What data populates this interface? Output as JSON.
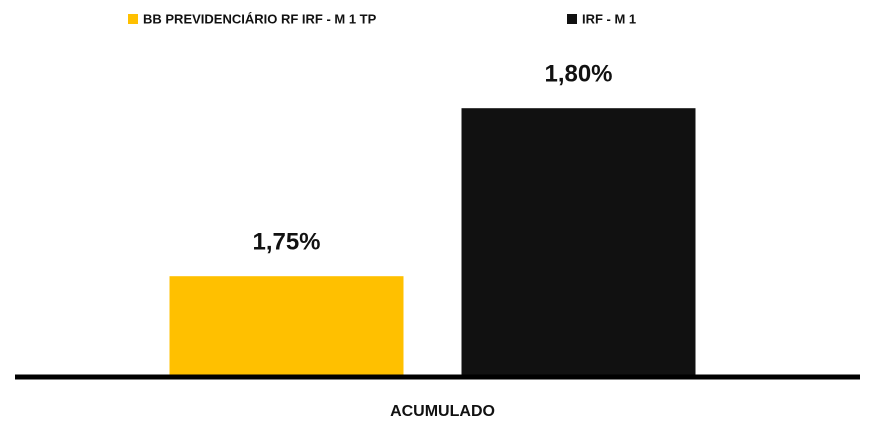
{
  "chart_data": {
    "type": "bar",
    "categories": [
      "ACUMULADO"
    ],
    "series": [
      {
        "name": "BB PREVIDENCIÁRIO RF IRF - M 1 TP",
        "color": "#ffc000",
        "values": [
          1.75
        ],
        "value_labels": [
          "1,75%"
        ]
      },
      {
        "name": "IRF - M 1",
        "color": "#111111",
        "values": [
          1.8
        ],
        "value_labels": [
          "1,80%"
        ]
      }
    ],
    "ylim": [
      1.72,
      1.82
    ],
    "legend": "top"
  }
}
